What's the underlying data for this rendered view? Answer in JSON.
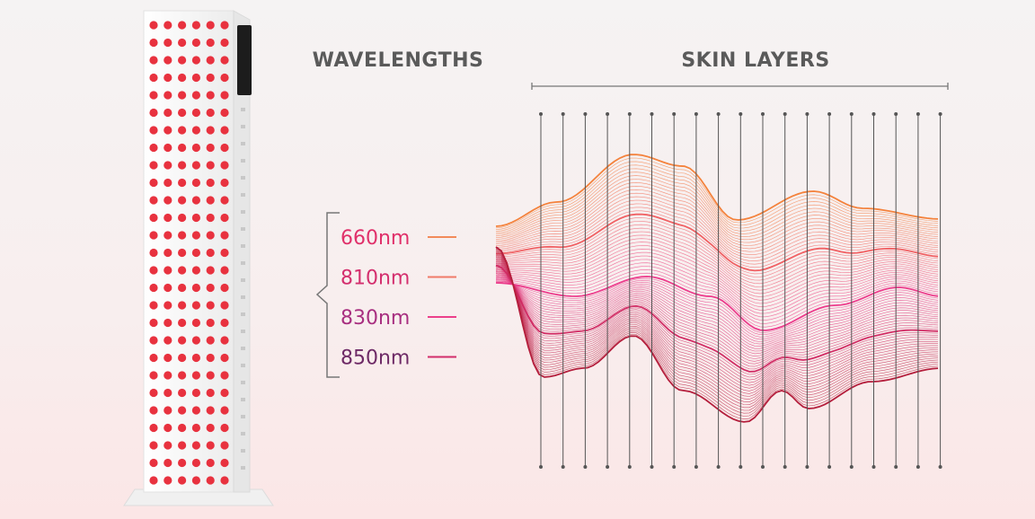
{
  "header": {
    "wavelengths_title": "WAVELENGTHS",
    "skin_layers_title": "SKIN LAYERS"
  },
  "wavelengths": [
    {
      "label": "660nm"
    },
    {
      "label": "810nm"
    },
    {
      "label": "830nm"
    },
    {
      "label": "850nm"
    }
  ]
}
